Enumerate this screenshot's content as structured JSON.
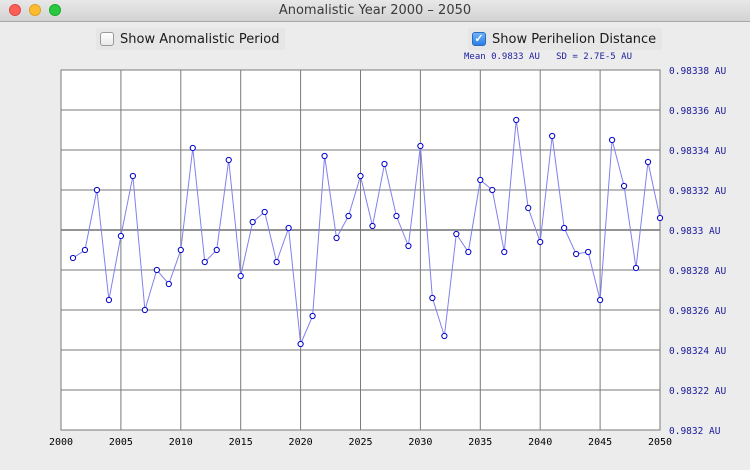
{
  "window": {
    "title": "Anomalistic Year 2000 – 2050"
  },
  "controls": {
    "anomalistic_label": "Show Anomalistic Period",
    "anomalistic_checked": false,
    "perihelion_label": "Show Perihelion Distance",
    "perihelion_checked": true
  },
  "stats": {
    "mean": "Mean 0.9833 AU",
    "sd": "SD = 2.7E-5 AU"
  },
  "colors": {
    "series": "#8080ee",
    "marker": "#0000cc",
    "grid": "#7a7a7a",
    "mean_line": "#707070",
    "axis_text": "#1a1a9a"
  },
  "icons": {
    "check": "checkmark-icon"
  },
  "chart_data": {
    "type": "line",
    "x_ticks": [
      2000,
      2005,
      2010,
      2015,
      2020,
      2025,
      2030,
      2035,
      2040,
      2045,
      2050
    ],
    "y_ticks": [
      "0.98338 AU",
      "0.98336 AU",
      "0.98334 AU",
      "0.98332 AU",
      "0.9833 AU",
      "0.98328 AU",
      "0.98326 AU",
      "0.98324 AU",
      "0.98322 AU",
      "0.9832 AU"
    ],
    "xlim": [
      2000,
      2050
    ],
    "ylim": [
      0.9832,
      0.98338
    ],
    "mean": 0.9833,
    "grid": true,
    "x": [
      2001,
      2002,
      2003,
      2004,
      2005,
      2006,
      2007,
      2008,
      2009,
      2010,
      2011,
      2012,
      2013,
      2014,
      2015,
      2016,
      2017,
      2018,
      2019,
      2020,
      2021,
      2022,
      2023,
      2024,
      2025,
      2026,
      2027,
      2028,
      2029,
      2030,
      2031,
      2032,
      2033,
      2034,
      2035,
      2036,
      2037,
      2038,
      2039,
      2040,
      2041,
      2042,
      2043,
      2044,
      2045,
      2046,
      2047,
      2048,
      2049,
      2050
    ],
    "values": [
      0.983286,
      0.98329,
      0.98332,
      0.983265,
      0.983297,
      0.983327,
      0.98326,
      0.98328,
      0.983273,
      0.98329,
      0.983341,
      0.983284,
      0.98329,
      0.983335,
      0.983277,
      0.983304,
      0.983309,
      0.983284,
      0.983301,
      0.983243,
      0.983257,
      0.983337,
      0.983296,
      0.983307,
      0.983327,
      0.983302,
      0.983333,
      0.983307,
      0.983292,
      0.983342,
      0.983266,
      0.983247,
      0.983298,
      0.983289,
      0.983325,
      0.98332,
      0.983289,
      0.983355,
      0.983311,
      0.983294,
      0.983347,
      0.983301,
      0.983288,
      0.983289,
      0.983265,
      0.983345,
      0.983322,
      0.983281,
      0.983334,
      0.983306
    ]
  }
}
